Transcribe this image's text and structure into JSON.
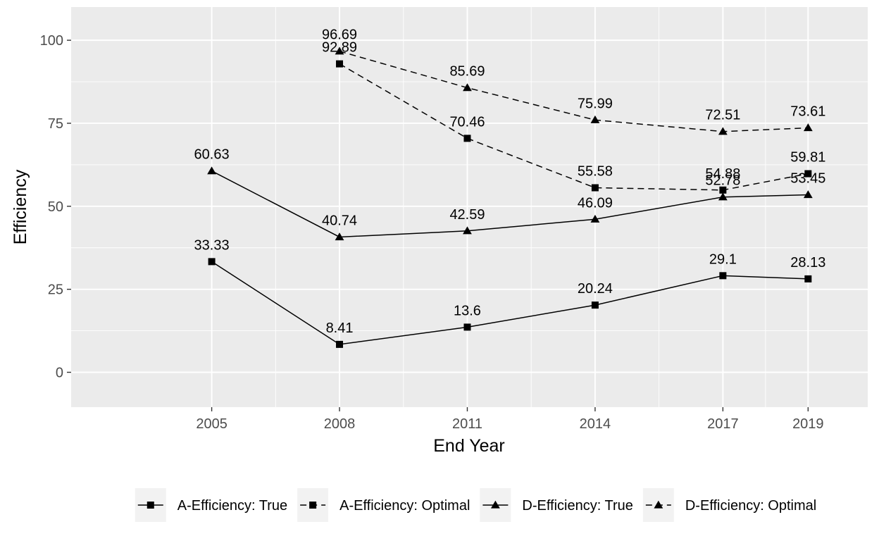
{
  "chart_data": {
    "type": "line",
    "title": "",
    "xlabel": "End Year",
    "ylabel": "Efficiency",
    "x": [
      2005,
      2008,
      2011,
      2014,
      2017,
      2019
    ],
    "xlim": [
      2001.7,
      2020.4
    ],
    "ylim": [
      -10.5,
      110
    ],
    "x_ticks": [
      2005,
      2008,
      2011,
      2014,
      2017,
      2019
    ],
    "y_ticks": [
      0,
      25,
      50,
      75,
      100
    ],
    "grid": true,
    "legend_position": "bottom",
    "series": [
      {
        "name": "A-Efficiency: True",
        "marker": "square",
        "linestyle": "solid",
        "x": [
          2005,
          2008,
          2011,
          2014,
          2017,
          2019
        ],
        "values": [
          33.33,
          8.41,
          13.6,
          20.24,
          29.1,
          28.13
        ],
        "labels": [
          "33.33",
          "8.41",
          "13.6",
          "20.24",
          "29.1",
          "28.13"
        ]
      },
      {
        "name": "A-Efficiency: Optimal",
        "marker": "square",
        "linestyle": "dashed",
        "x": [
          2008,
          2011,
          2014,
          2017,
          2019
        ],
        "values": [
          92.89,
          70.46,
          55.58,
          54.88,
          59.81
        ],
        "labels": [
          "92.89",
          "70.46",
          "55.58",
          "54.88",
          "59.81"
        ]
      },
      {
        "name": "D-Efficiency: True",
        "marker": "triangle",
        "linestyle": "solid",
        "x": [
          2005,
          2008,
          2011,
          2014,
          2017,
          2019
        ],
        "values": [
          60.63,
          40.74,
          42.59,
          46.09,
          52.78,
          53.45
        ],
        "labels": [
          "60.63",
          "40.74",
          "42.59",
          "46.09",
          "52.78",
          "53.45"
        ]
      },
      {
        "name": "D-Efficiency: Optimal",
        "marker": "triangle",
        "linestyle": "dashed",
        "x": [
          2008,
          2011,
          2014,
          2017,
          2019
        ],
        "values": [
          96.69,
          85.69,
          75.99,
          72.51,
          73.61
        ],
        "labels": [
          "96.69",
          "85.69",
          "75.99",
          "72.51",
          "73.61"
        ]
      }
    ],
    "colors": {
      "panel_background": "#ebebeb",
      "grid_major": "#ffffff",
      "line": "#000000",
      "tick_text": "#4d4d4d",
      "legend_key_background": "#f2f2f2"
    }
  }
}
